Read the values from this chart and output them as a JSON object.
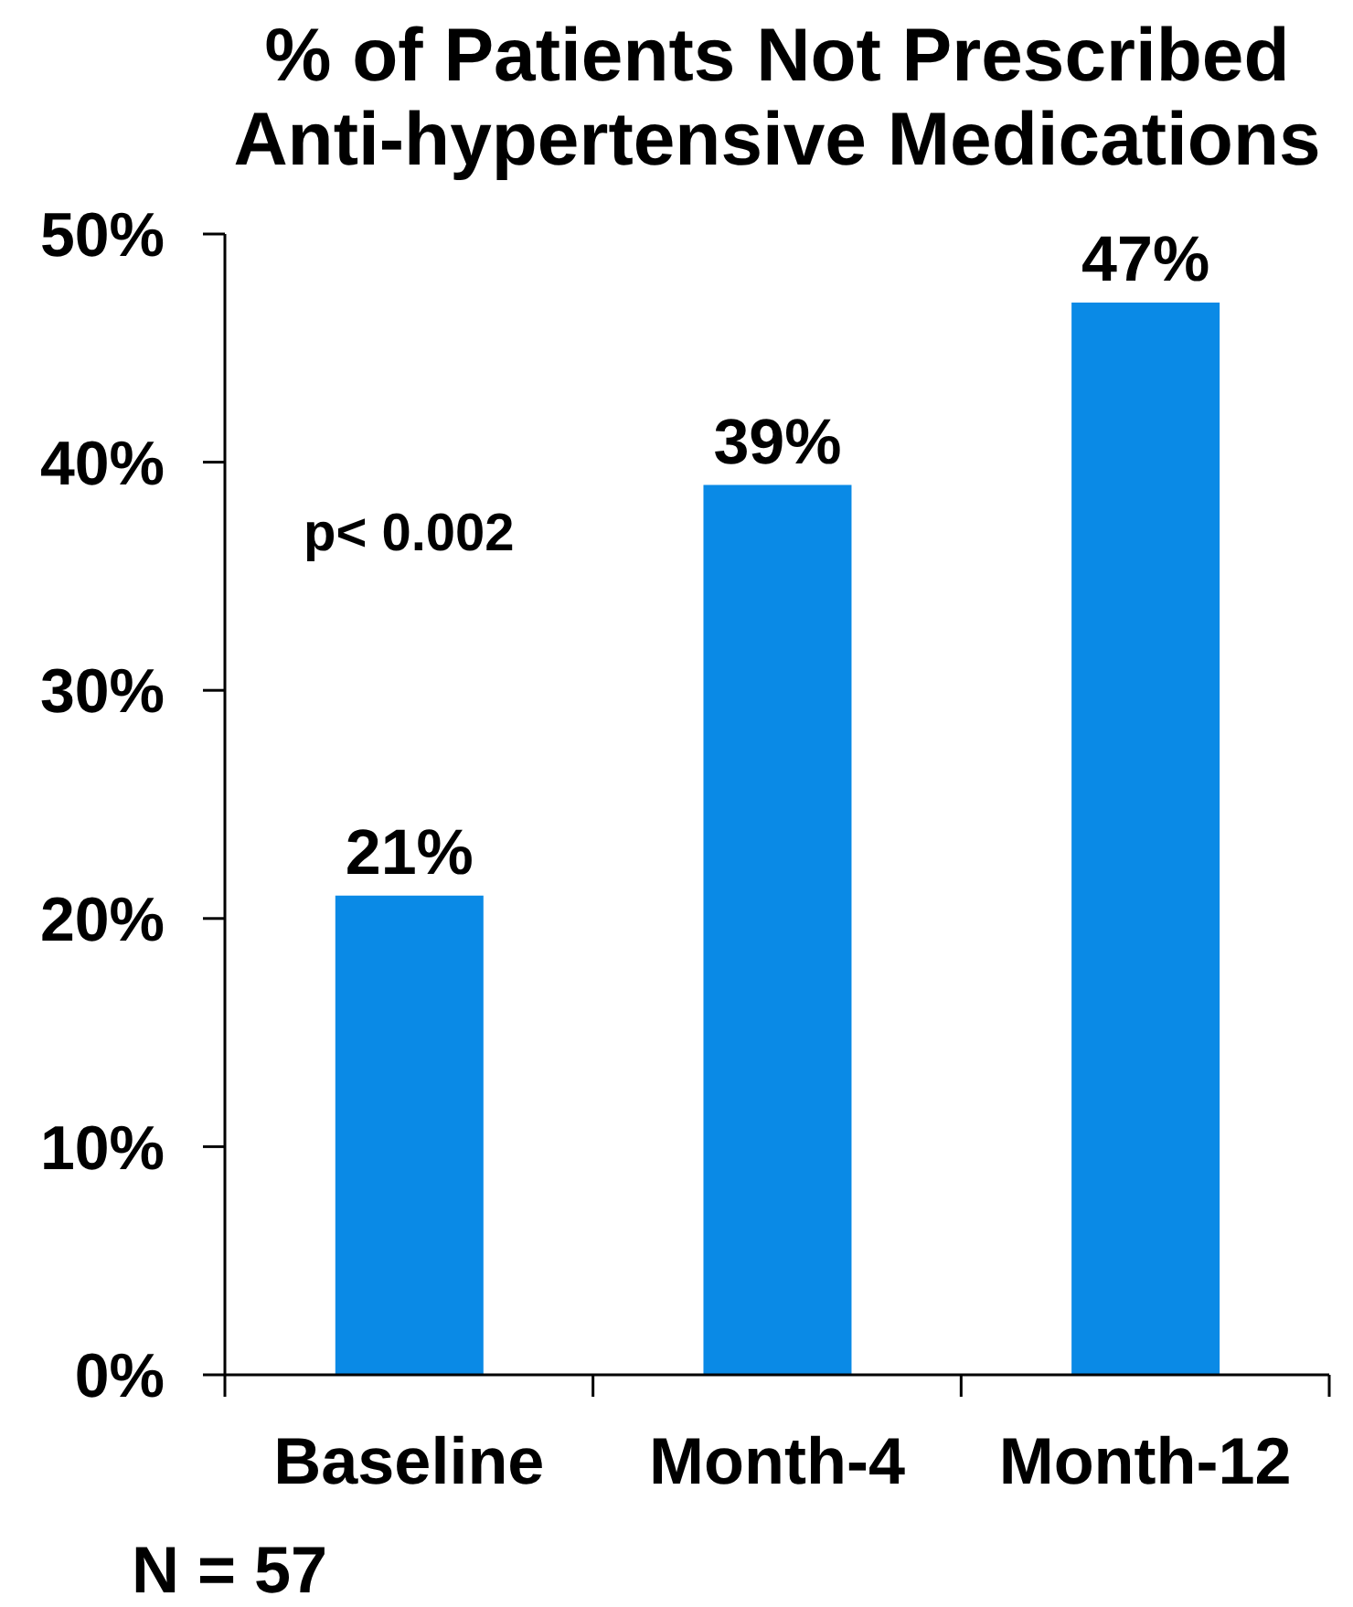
{
  "chart_data": {
    "type": "bar",
    "title": "% of Patients Not Prescribed Anti-hypertensive Medications",
    "categories": [
      "Baseline",
      "Month-4",
      "Month-12"
    ],
    "values": [
      21,
      39,
      47
    ],
    "value_labels": [
      "21%",
      "39%",
      "47%"
    ],
    "color": "#0a8ae6",
    "ylim": [
      0,
      50
    ],
    "yticks": [
      {
        "value": 0,
        "label": "0%"
      },
      {
        "value": 10,
        "label": "10%"
      },
      {
        "value": 20,
        "label": "20%"
      },
      {
        "value": 30,
        "label": "30%"
      },
      {
        "value": 40,
        "label": "40%"
      },
      {
        "value": 50,
        "label": "50%"
      }
    ],
    "annotations": [
      "p< 0.002",
      "N = 57"
    ]
  }
}
